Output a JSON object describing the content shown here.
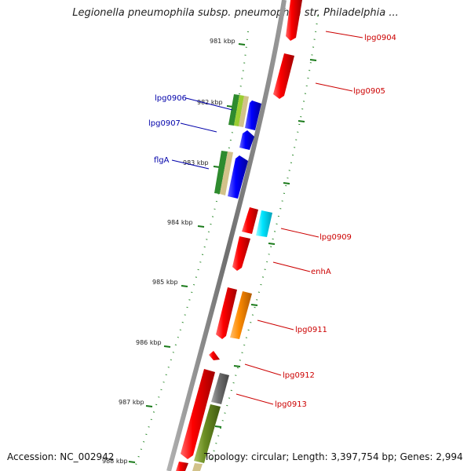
{
  "title": "Legionella pneumophila subsp. pneumophila str. Philadelphia ...",
  "footer": {
    "accession": "Accession: NC_002942",
    "topology": "Topology: circular; Length: 3,397,754 bp; Genes: 2,994"
  },
  "colors": {
    "backbone": "#808080",
    "tick": "#1a7a1a",
    "forward_label": "#0000aa",
    "reverse_label": "#cc0000",
    "red": "#ff0000",
    "blue": "#0000ff",
    "cyan": "#00e5ff",
    "orange": "#ff8c00",
    "gray": "#707070",
    "olive": "#6b8e23",
    "green": "#2e8b2e",
    "lightgreen": "#9acd32",
    "tan": "#d2c28a"
  },
  "kbp_ticks": [
    "981 kbp",
    "982 kbp",
    "983 kbp",
    "984 kbp",
    "985 kbp",
    "986 kbp",
    "987 kbp",
    "988 kbp"
  ],
  "gene_labels": {
    "left": [
      "lpg0906",
      "lpg0907",
      "flgA"
    ],
    "right": [
      "lpg0904",
      "lpg0905",
      "lpg0909",
      "enhA",
      "lpg0911",
      "lpg0912",
      "lpg0913"
    ]
  }
}
